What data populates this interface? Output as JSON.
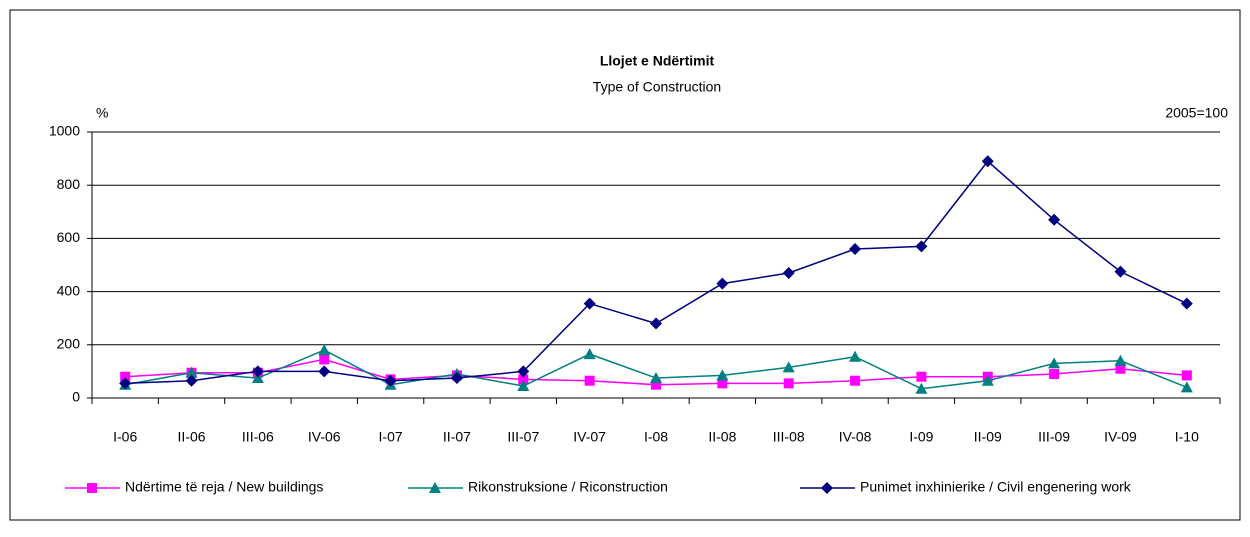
{
  "chart_data": {
    "type": "line",
    "title": "Llojet e Ndërtimit",
    "subtitle": "Type of Construction",
    "y_label": "%",
    "annotation": "2005=100",
    "categories": [
      "I-06",
      "II-06",
      "III-06",
      "IV-06",
      "I-07",
      "II-07",
      "III-07",
      "IV-07",
      "I-08",
      "II-08",
      "III-08",
      "IV-08",
      "I-09",
      "II-09",
      "III-09",
      "IV-09",
      "I-10"
    ],
    "series": [
      {
        "name": "Ndërtime të reja / New buildings",
        "color": "#ff00ff",
        "marker": "square",
        "values": [
          80,
          95,
          95,
          145,
          70,
          85,
          70,
          65,
          50,
          55,
          55,
          65,
          80,
          80,
          90,
          110,
          85
        ]
      },
      {
        "name": "Rikonstruksione / Riconstruction",
        "color": "#008080",
        "marker": "triangle",
        "values": [
          50,
          95,
          75,
          180,
          50,
          90,
          45,
          165,
          75,
          85,
          115,
          155,
          35,
          65,
          130,
          140,
          40
        ]
      },
      {
        "name": "Punimet inxhinierike / Civil engenering work",
        "color": "#000080",
        "marker": "diamond",
        "values": [
          55,
          65,
          100,
          100,
          65,
          75,
          100,
          355,
          280,
          430,
          470,
          560,
          570,
          890,
          670,
          475,
          355
        ]
      }
    ],
    "ylim": [
      0,
      1000
    ],
    "yticks": [
      0,
      200,
      400,
      600,
      800,
      1000
    ],
    "grid": true,
    "legend": "bottom"
  }
}
